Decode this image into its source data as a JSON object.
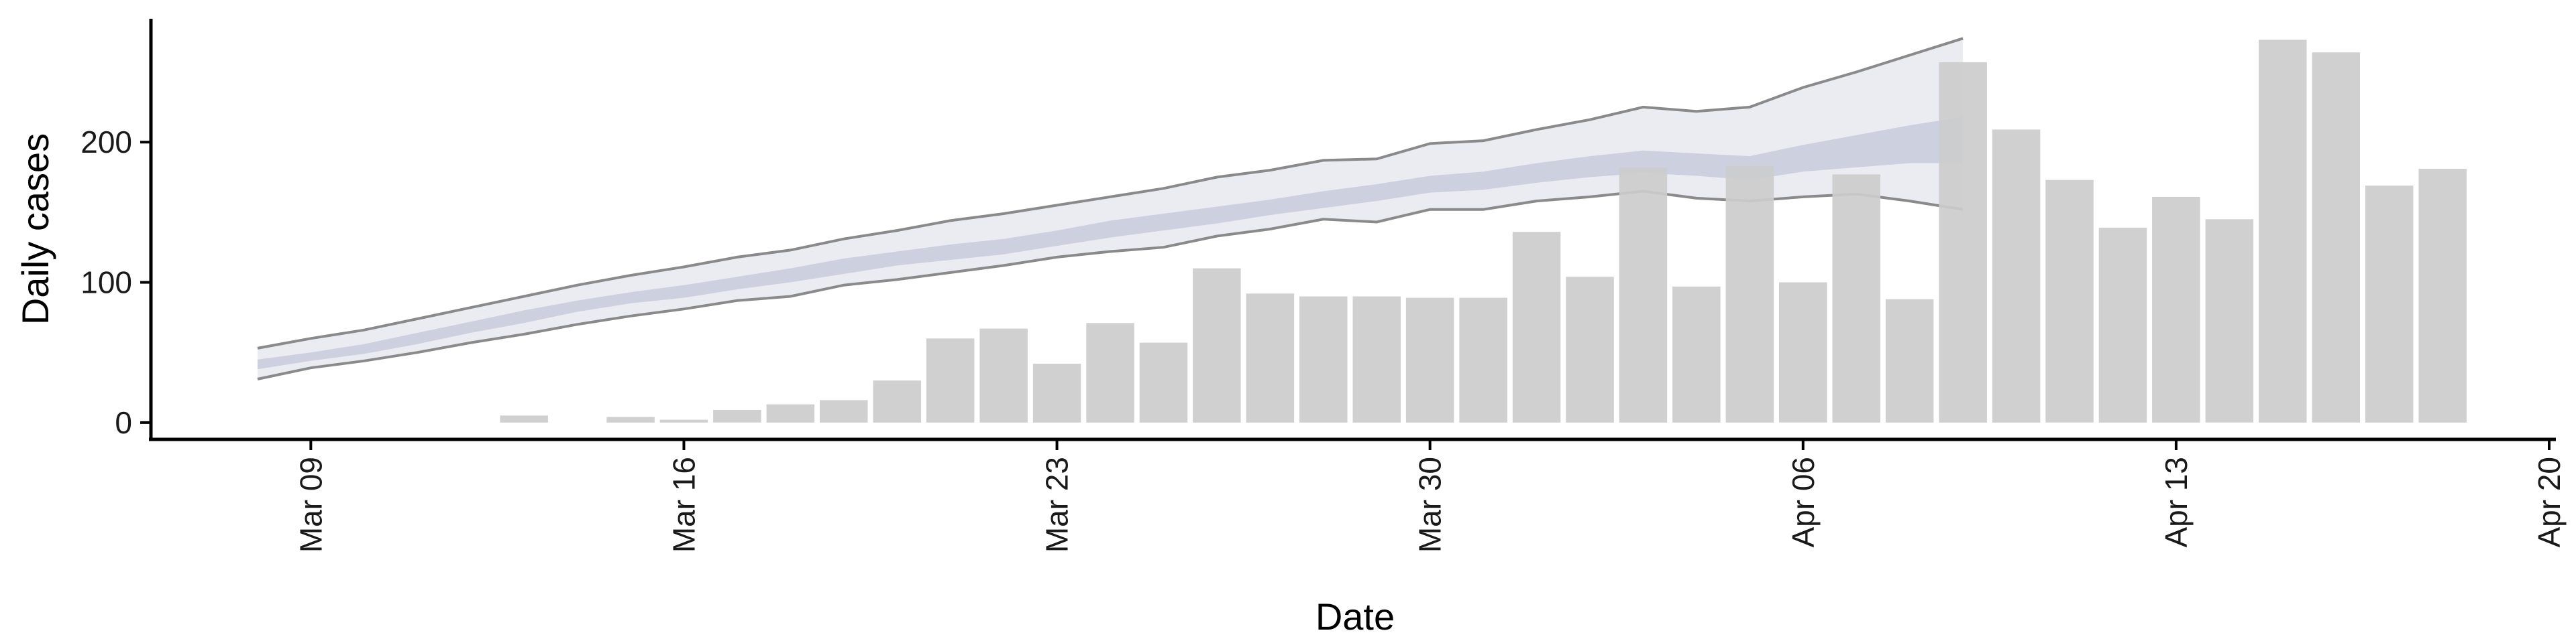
{
  "chart_data": {
    "type": "bar",
    "xlabel": "Date",
    "ylabel": "Daily cases",
    "x_ticks": [
      {
        "date": "2020-03-09",
        "label": "Mar 09"
      },
      {
        "date": "2020-03-16",
        "label": "Mar 16"
      },
      {
        "date": "2020-03-23",
        "label": "Mar 23"
      },
      {
        "date": "2020-03-30",
        "label": "Mar 30"
      },
      {
        "date": "2020-04-06",
        "label": "Apr 06"
      },
      {
        "date": "2020-04-13",
        "label": "Apr 13"
      },
      {
        "date": "2020-04-20",
        "label": "Apr 20"
      }
    ],
    "y_ticks": [
      0,
      100,
      200
    ],
    "xlim": [
      "2020-03-06",
      "2020-04-20"
    ],
    "ylim": [
      -12,
      288
    ],
    "grid": false,
    "colors": {
      "bars": "#cccccc",
      "outer_band": "#e8e9f0",
      "inner_band": "#c8cbdc",
      "band_edges": "#8a8a8a"
    },
    "cases": [
      {
        "date": "2020-03-13",
        "value": 5
      },
      {
        "date": "2020-03-15",
        "value": 4
      },
      {
        "date": "2020-03-16",
        "value": 2
      },
      {
        "date": "2020-03-17",
        "value": 9
      },
      {
        "date": "2020-03-18",
        "value": 13
      },
      {
        "date": "2020-03-19",
        "value": 16
      },
      {
        "date": "2020-03-20",
        "value": 30
      },
      {
        "date": "2020-03-21",
        "value": 60
      },
      {
        "date": "2020-03-22",
        "value": 67
      },
      {
        "date": "2020-03-23",
        "value": 42
      },
      {
        "date": "2020-03-24",
        "value": 71
      },
      {
        "date": "2020-03-25",
        "value": 57
      },
      {
        "date": "2020-03-26",
        "value": 110
      },
      {
        "date": "2020-03-27",
        "value": 92
      },
      {
        "date": "2020-03-28",
        "value": 90
      },
      {
        "date": "2020-03-29",
        "value": 90
      },
      {
        "date": "2020-03-30",
        "value": 89
      },
      {
        "date": "2020-03-31",
        "value": 89
      },
      {
        "date": "2020-04-01",
        "value": 136
      },
      {
        "date": "2020-04-02",
        "value": 104
      },
      {
        "date": "2020-04-03",
        "value": 182
      },
      {
        "date": "2020-04-04",
        "value": 97
      },
      {
        "date": "2020-04-05",
        "value": 183
      },
      {
        "date": "2020-04-06",
        "value": 100
      },
      {
        "date": "2020-04-07",
        "value": 177
      },
      {
        "date": "2020-04-08",
        "value": 88
      },
      {
        "date": "2020-04-09",
        "value": 257
      },
      {
        "date": "2020-04-10",
        "value": 209
      },
      {
        "date": "2020-04-11",
        "value": 173
      },
      {
        "date": "2020-04-12",
        "value": 139
      },
      {
        "date": "2020-04-13",
        "value": 161
      },
      {
        "date": "2020-04-14",
        "value": 145
      },
      {
        "date": "2020-04-15",
        "value": 273
      },
      {
        "date": "2020-04-16",
        "value": 264
      },
      {
        "date": "2020-04-17",
        "value": 169
      },
      {
        "date": "2020-04-18",
        "value": 181
      }
    ],
    "estimate": [
      {
        "date": "2020-03-08",
        "lo90": 31,
        "lo50": 38,
        "hi50": 45,
        "hi90": 53
      },
      {
        "date": "2020-03-09",
        "lo90": 39,
        "lo50": 44,
        "hi50": 50,
        "hi90": 60
      },
      {
        "date": "2020-03-10",
        "lo90": 44,
        "lo50": 49,
        "hi50": 56,
        "hi90": 66
      },
      {
        "date": "2020-03-11",
        "lo90": 50,
        "lo50": 56,
        "hi50": 64,
        "hi90": 74
      },
      {
        "date": "2020-03-12",
        "lo90": 57,
        "lo50": 64,
        "hi50": 72,
        "hi90": 82
      },
      {
        "date": "2020-03-13",
        "lo90": 63,
        "lo50": 71,
        "hi50": 80,
        "hi90": 90
      },
      {
        "date": "2020-03-14",
        "lo90": 70,
        "lo50": 79,
        "hi50": 87,
        "hi90": 98
      },
      {
        "date": "2020-03-15",
        "lo90": 76,
        "lo50": 85,
        "hi50": 93,
        "hi90": 105
      },
      {
        "date": "2020-03-16",
        "lo90": 81,
        "lo50": 89,
        "hi50": 98,
        "hi90": 111
      },
      {
        "date": "2020-03-17",
        "lo90": 87,
        "lo50": 95,
        "hi50": 104,
        "hi90": 118
      },
      {
        "date": "2020-03-18",
        "lo90": 90,
        "lo50": 100,
        "hi50": 110,
        "hi90": 123
      },
      {
        "date": "2020-03-19",
        "lo90": 98,
        "lo50": 106,
        "hi50": 117,
        "hi90": 131
      },
      {
        "date": "2020-03-20",
        "lo90": 102,
        "lo50": 112,
        "hi50": 122,
        "hi90": 137
      },
      {
        "date": "2020-03-21",
        "lo90": 107,
        "lo50": 116,
        "hi50": 127,
        "hi90": 144
      },
      {
        "date": "2020-03-22",
        "lo90": 112,
        "lo50": 120,
        "hi50": 131,
        "hi90": 149
      },
      {
        "date": "2020-03-23",
        "lo90": 118,
        "lo50": 126,
        "hi50": 137,
        "hi90": 155
      },
      {
        "date": "2020-03-24",
        "lo90": 122,
        "lo50": 132,
        "hi50": 144,
        "hi90": 161
      },
      {
        "date": "2020-03-25",
        "lo90": 125,
        "lo50": 137,
        "hi50": 149,
        "hi90": 167
      },
      {
        "date": "2020-03-26",
        "lo90": 133,
        "lo50": 142,
        "hi50": 154,
        "hi90": 175
      },
      {
        "date": "2020-03-27",
        "lo90": 138,
        "lo50": 148,
        "hi50": 159,
        "hi90": 180
      },
      {
        "date": "2020-03-28",
        "lo90": 145,
        "lo50": 153,
        "hi50": 165,
        "hi90": 187
      },
      {
        "date": "2020-03-29",
        "lo90": 143,
        "lo50": 158,
        "hi50": 170,
        "hi90": 188
      },
      {
        "date": "2020-03-30",
        "lo90": 152,
        "lo50": 164,
        "hi50": 176,
        "hi90": 199
      },
      {
        "date": "2020-03-31",
        "lo90": 152,
        "lo50": 166,
        "hi50": 179,
        "hi90": 201
      },
      {
        "date": "2020-04-01",
        "lo90": 158,
        "lo50": 171,
        "hi50": 185,
        "hi90": 209
      },
      {
        "date": "2020-04-02",
        "lo90": 161,
        "lo50": 175,
        "hi50": 190,
        "hi90": 216
      },
      {
        "date": "2020-04-03",
        "lo90": 165,
        "lo50": 178,
        "hi50": 194,
        "hi90": 225
      },
      {
        "date": "2020-04-04",
        "lo90": 160,
        "lo50": 176,
        "hi50": 192,
        "hi90": 222
      },
      {
        "date": "2020-04-05",
        "lo90": 158,
        "lo50": 173,
        "hi50": 190,
        "hi90": 225
      },
      {
        "date": "2020-04-06",
        "lo90": 161,
        "lo50": 179,
        "hi50": 198,
        "hi90": 239
      },
      {
        "date": "2020-04-07",
        "lo90": 163,
        "lo50": 182,
        "hi50": 205,
        "hi90": 250
      },
      {
        "date": "2020-04-08",
        "lo90": 158,
        "lo50": 185,
        "hi50": 212,
        "hi90": 262
      },
      {
        "date": "2020-04-09",
        "lo90": 152,
        "lo50": 185,
        "hi50": 218,
        "hi90": 274
      }
    ]
  }
}
